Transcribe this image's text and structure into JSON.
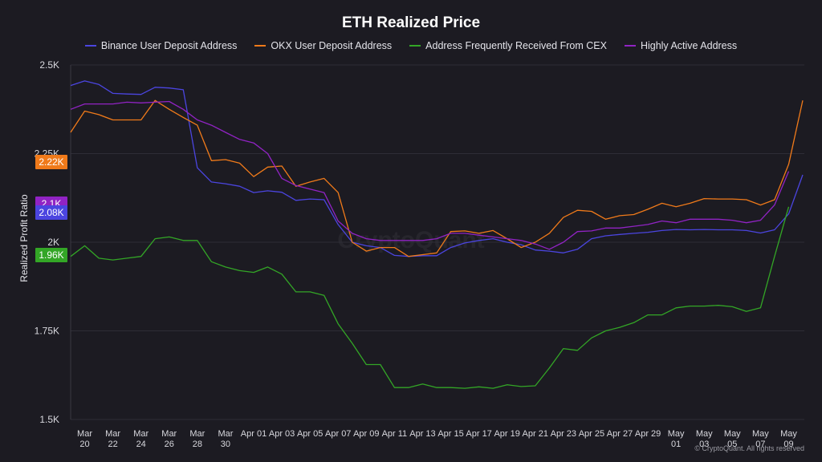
{
  "chart_data": {
    "type": "line",
    "title": "ETH Realized Price",
    "ylabel": "Realized Profit Ratio",
    "xlabel": "",
    "ylim": [
      1500,
      2500
    ],
    "yticks": [
      {
        "value": 1500,
        "label": "1.5K"
      },
      {
        "value": 1750,
        "label": "1.75K"
      },
      {
        "value": 2000,
        "label": "2K"
      },
      {
        "value": 2250,
        "label": "2.25K"
      },
      {
        "value": 2500,
        "label": "2.5K"
      }
    ],
    "xtick_labels": [
      "Mar 20",
      "Mar 22",
      "Mar 24",
      "Mar 26",
      "Mar 28",
      "Mar 30",
      "Apr 01",
      "Apr 03",
      "Apr 05",
      "Apr 07",
      "Apr 09",
      "Apr 11",
      "Apr 13",
      "Apr 15",
      "Apr 17",
      "Apr 19",
      "Apr 21",
      "Apr 23",
      "Apr 25",
      "Apr 27",
      "Apr 29",
      "May 01",
      "May 03",
      "May 05",
      "May 07",
      "May 09"
    ],
    "x_start": "2025-03-19",
    "grid": true,
    "legend_position": "top",
    "series": [
      {
        "name": "Binance User Deposit Address",
        "color": "#4b45e0",
        "values": [
          2442,
          2455,
          2445,
          2420,
          2418,
          2417,
          2437,
          2435,
          2430,
          2210,
          2170,
          2165,
          2158,
          2140,
          2145,
          2141,
          2118,
          2122,
          2120,
          2050,
          2000,
          1990,
          1985,
          1963,
          1960,
          1962,
          1962,
          1985,
          1998,
          2005,
          2010,
          2000,
          1993,
          1978,
          1975,
          1970,
          1980,
          2010,
          2018,
          2022,
          2025,
          2028,
          2033,
          2036,
          2035,
          2036,
          2035,
          2035,
          2033,
          2026,
          2035,
          2080,
          2190
        ]
      },
      {
        "name": "OKX User Deposit Address",
        "color": "#f07a1a",
        "values": [
          2310,
          2370,
          2360,
          2345,
          2345,
          2345,
          2400,
          2375,
          2352,
          2330,
          2230,
          2233,
          2223,
          2185,
          2212,
          2215,
          2158,
          2170,
          2180,
          2140,
          2000,
          1975,
          1985,
          1985,
          1960,
          1965,
          1970,
          2030,
          2032,
          2025,
          2033,
          2010,
          1985,
          2000,
          2025,
          2070,
          2090,
          2087,
          2065,
          2075,
          2078,
          2093,
          2110,
          2100,
          2110,
          2123,
          2122,
          2122,
          2120,
          2105,
          2120,
          2220,
          2400
        ]
      },
      {
        "name": "Address Frequently Received From CEX",
        "color": "#33a626",
        "values": [
          1960,
          1990,
          1955,
          1950,
          1955,
          1960,
          2010,
          2015,
          2005,
          2005,
          1945,
          1930,
          1920,
          1915,
          1930,
          1910,
          1860,
          1860,
          1850,
          1770,
          1715,
          1655,
          1655,
          1590,
          1590,
          1600,
          1590,
          1590,
          1588,
          1592,
          1588,
          1598,
          1593,
          1595,
          1645,
          1700,
          1695,
          1730,
          1750,
          1760,
          1773,
          1795,
          1795,
          1815,
          1820,
          1820,
          1822,
          1818,
          1805,
          1815,
          1960,
          2100
        ]
      },
      {
        "name": "Highly Active Address",
        "color": "#9123c4",
        "values": [
          2375,
          2390,
          2390,
          2390,
          2395,
          2393,
          2395,
          2397,
          2375,
          2345,
          2330,
          2310,
          2290,
          2280,
          2250,
          2180,
          2160,
          2150,
          2140,
          2060,
          2025,
          2010,
          2005,
          2005,
          2005,
          2005,
          2010,
          2025,
          2025,
          2020,
          2015,
          2010,
          2005,
          1995,
          1980,
          2000,
          2030,
          2032,
          2040,
          2040,
          2045,
          2050,
          2060,
          2055,
          2065,
          2065,
          2065,
          2062,
          2055,
          2062,
          2105,
          2200
        ]
      }
    ]
  },
  "badges": [
    {
      "label": "2.22K",
      "color": "#f07a1a"
    },
    {
      "label": "2.1K",
      "color": "#9123c4"
    },
    {
      "label": "2.08K",
      "color": "#4b45e0"
    },
    {
      "label": "1.96K",
      "color": "#33a626"
    }
  ],
  "watermark": "CryptoQuant",
  "copyright": "© CryptoQuant. All rights reserved"
}
